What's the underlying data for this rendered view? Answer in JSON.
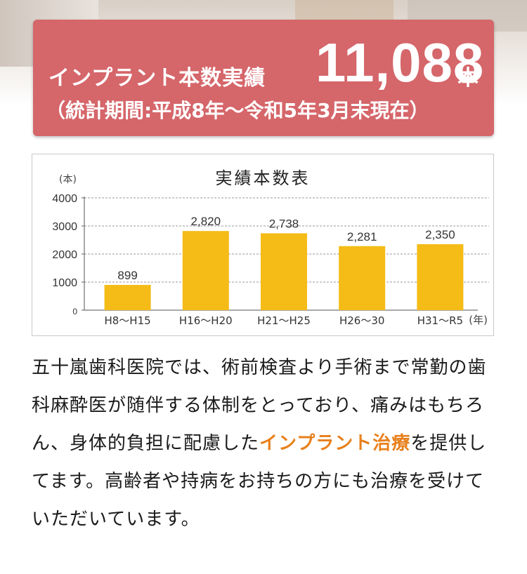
{
  "banner": {
    "title": "インプラント本数実績",
    "count": "11,088",
    "unit": "本",
    "subtitle": "（統計期間:平成8年～令和5年3月末現在）"
  },
  "chart_data": {
    "type": "bar",
    "title": "実績本数表",
    "ylabel": "(本)",
    "xlabel": "(年)",
    "ylim": [
      0,
      4000
    ],
    "yticks": [
      "0",
      "1000",
      "2000",
      "3000",
      "4000"
    ],
    "ytick_values": [
      0,
      1000,
      2000,
      3000,
      4000
    ],
    "grid": true,
    "categories": [
      "H8～H15",
      "H16～H20",
      "H21～H25",
      "H26～30",
      "H31～R5"
    ],
    "values": [
      899,
      2820,
      2738,
      2281,
      2350
    ],
    "value_labels": [
      "899",
      "2,820",
      "2,738",
      "2,281",
      "2,350"
    ],
    "bar_color": "#f5bb17"
  },
  "body": {
    "part1": "五十嵐歯科医院では、術前検査より手術まで常勤の歯科麻酔医が随伴する体制をとっており、痛みはもちろん、身体的負担に配慮した",
    "highlight": "インプラント治療",
    "part2": "を提供してます。高齢者や持病をお持ちの方にも治療を受けていただいています。",
    "highlight_color": "#e8801c"
  },
  "colors": {
    "banner": "#d5666a",
    "text": "#1a1a1a"
  }
}
